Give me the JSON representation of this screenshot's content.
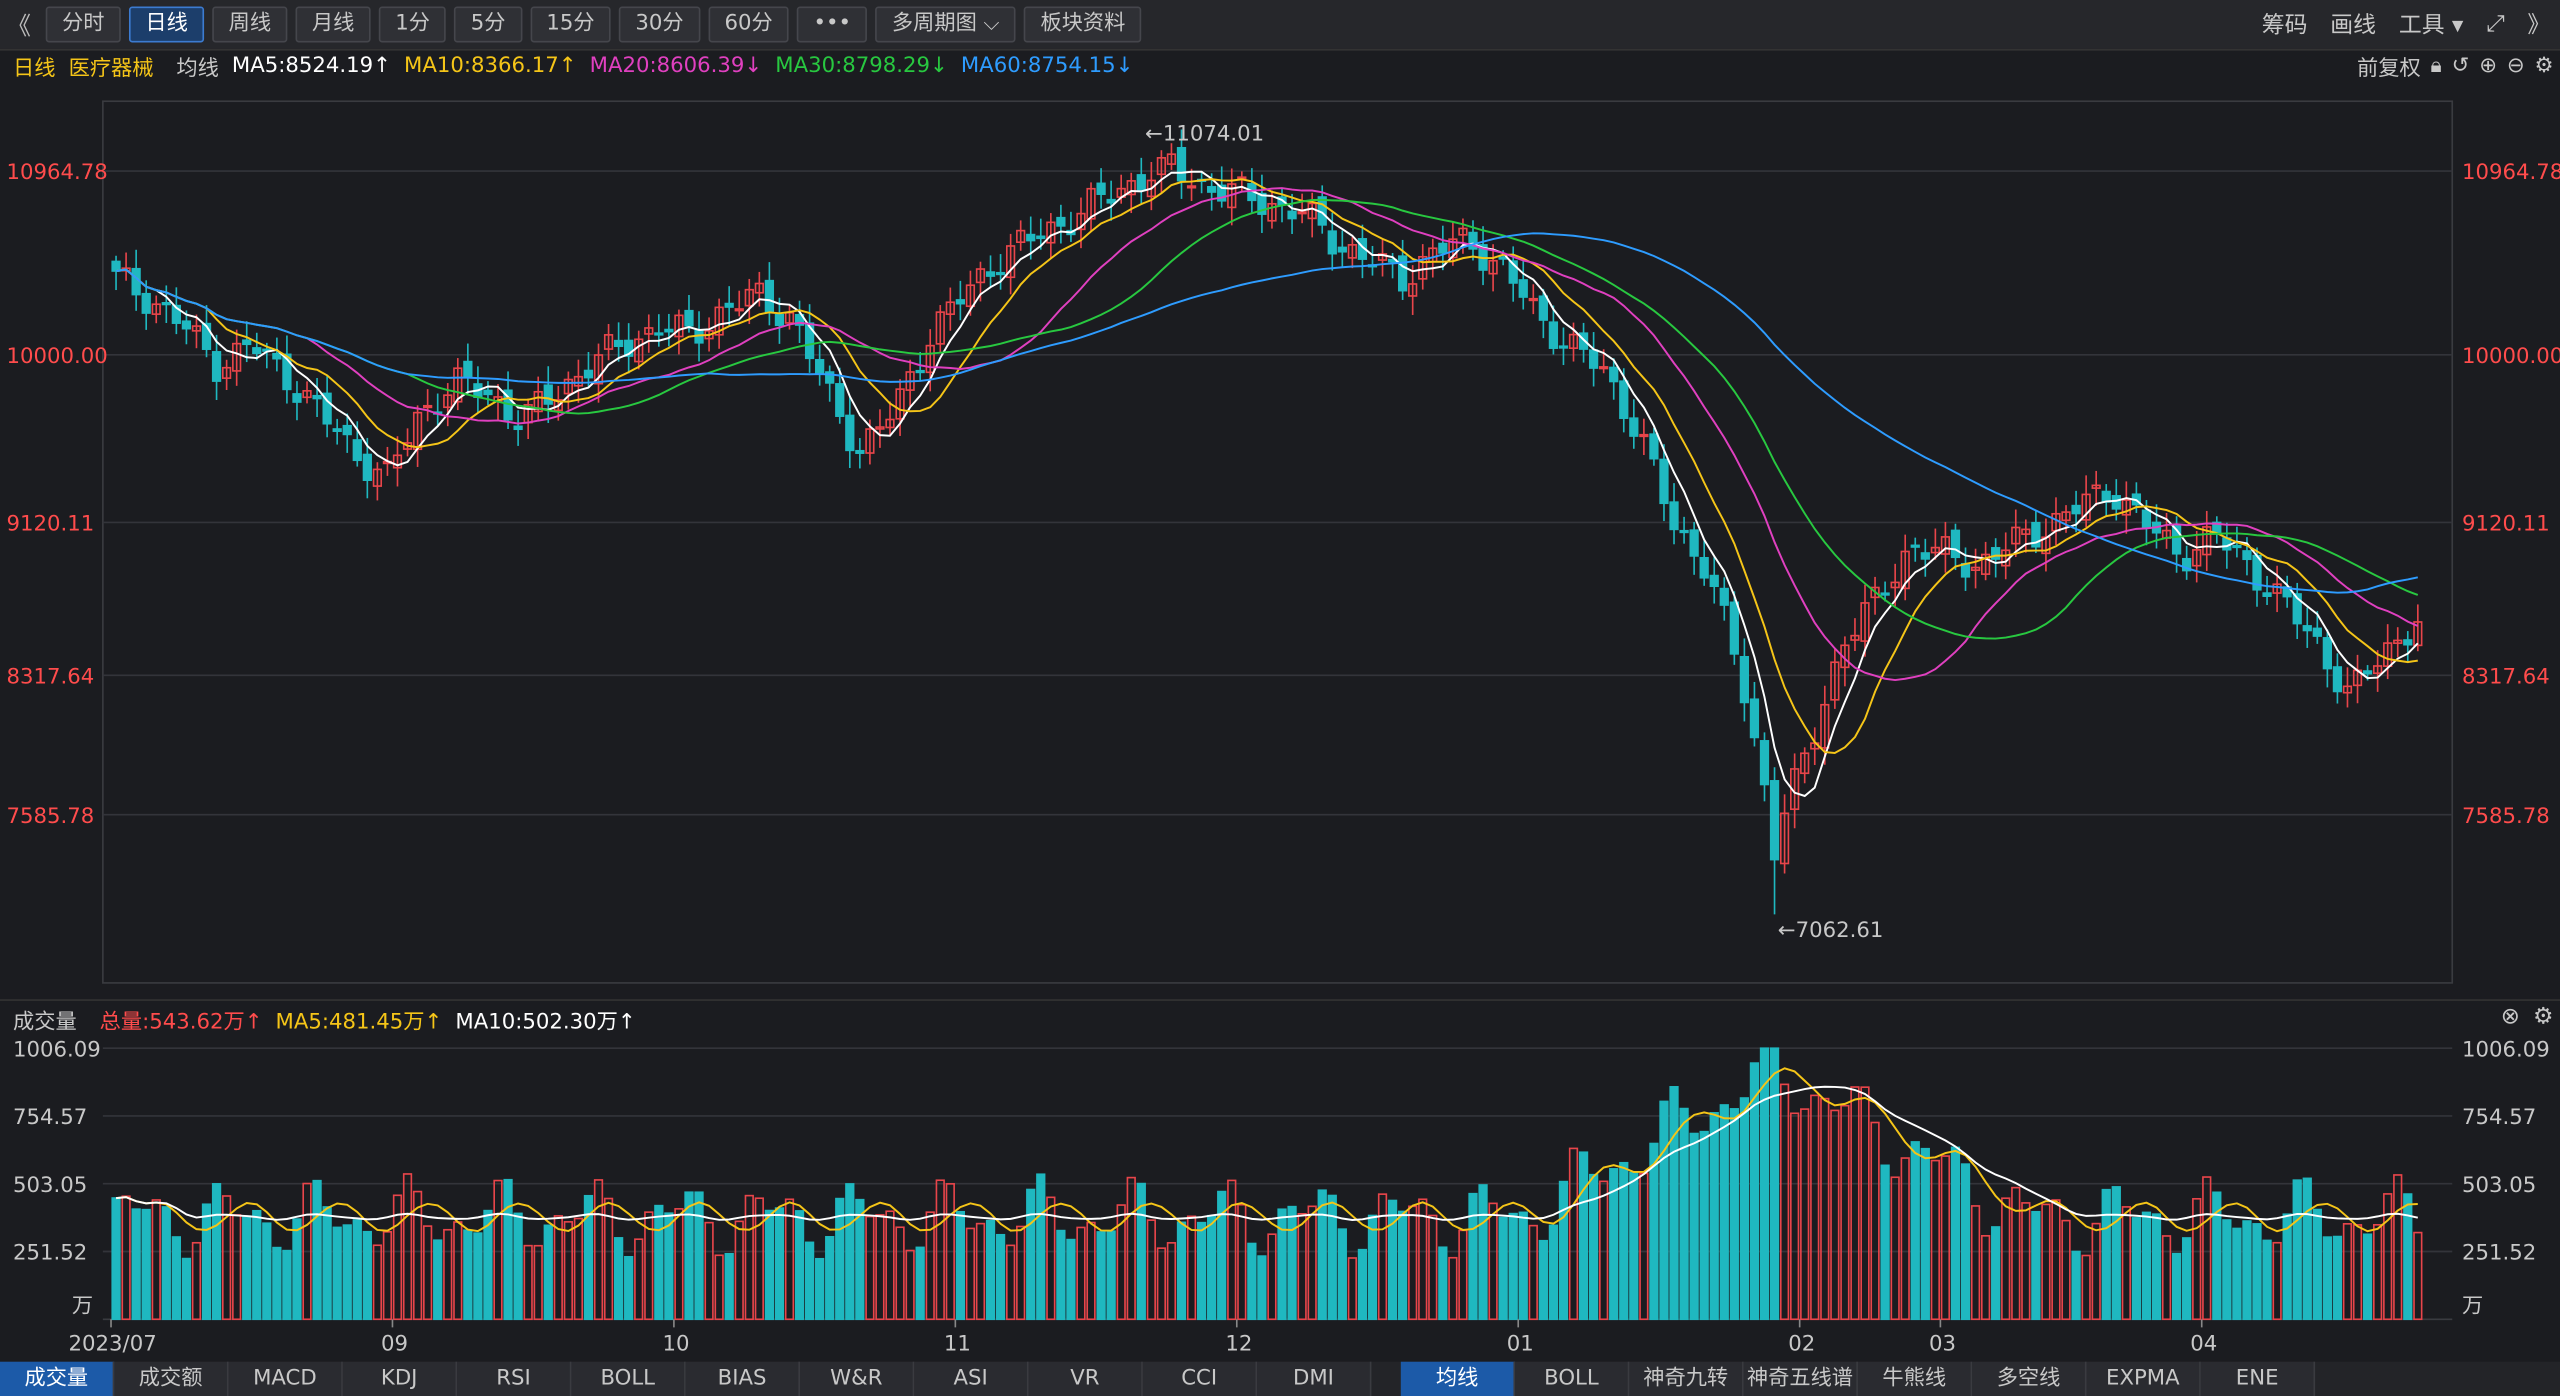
{
  "toolbar": {
    "collapse_left": "《",
    "tabs": [
      "分时",
      "日线",
      "周线",
      "月线",
      "1分",
      "5分",
      "15分",
      "30分",
      "60分",
      "•••",
      "多周期图 ⌵",
      "板块资料"
    ],
    "active_tab": 1,
    "right_items": [
      "筹码",
      "画线",
      "工具 ▾"
    ],
    "expand_icon": "⤢",
    "collapse_right": "》"
  },
  "ma_row": {
    "period": "日线",
    "sector": "医疗器械",
    "label": "均线",
    "ma5": "MA5:8524.19↑",
    "ma10": "MA10:8366.17↑",
    "ma20": "MA20:8606.39↓",
    "ma30": "MA30:8798.29↓",
    "ma60": "MA60:8754.15↓",
    "right_label": "前复权"
  },
  "colors": {
    "up": "#e8454a",
    "down": "#1fb8c0",
    "ma5": "#ffffff",
    "ma10": "#f5c518",
    "ma20": "#e040c0",
    "ma30": "#28c840",
    "ma60": "#2e9cff",
    "axis_red": "#ff4c4c"
  },
  "price_axis": {
    "ticks": [
      "10964.78",
      "10000.00",
      "9120.11",
      "8317.64",
      "7585.78"
    ],
    "max_label": "←11074.01",
    "min_label": "←7062.61"
  },
  "x_axis": {
    "labels": [
      "2023/07",
      "09",
      "10",
      "11",
      "12",
      "01",
      "02",
      "03",
      "04"
    ]
  },
  "volume_row": {
    "title": "成交量",
    "total": "总量:543.62万↑",
    "ma5": "MA5:481.45万↑",
    "ma10": "MA10:502.30万↑"
  },
  "volume_axis": {
    "ticks": [
      "1006.09",
      "754.57",
      "503.05",
      "251.52"
    ],
    "unit": "万"
  },
  "bottom_tabs_left": [
    "成交量",
    "成交额",
    "MACD",
    "KDJ",
    "RSI",
    "BOLL",
    "BIAS",
    "W&R",
    "ASI",
    "VR",
    "CCI",
    "DMI"
  ],
  "bottom_tabs_right": [
    "均线",
    "BOLL",
    "神奇九转",
    "神奇五线谱",
    "牛熊线",
    "多空线",
    "EXPMA",
    "ENE"
  ],
  "chart_data": {
    "type": "candlestick",
    "title": "医疗器械 日线",
    "period": "2023/07 – 2024/04",
    "price_range": [
      7062.61,
      11074.01
    ],
    "highest": 11074.01,
    "lowest": 7062.61,
    "moving_averages": {
      "MA5": 8524.19,
      "MA10": 8366.17,
      "MA20": 8606.39,
      "MA30": 8798.29,
      "MA60": 8754.15
    },
    "close_series_sampled": [
      10400,
      10300,
      10150,
      9950,
      10050,
      9900,
      9700,
      9500,
      9350,
      9700,
      9850,
      9800,
      9650,
      9800,
      9950,
      10050,
      10150,
      10100,
      10250,
      10300,
      10200,
      9800,
      9500,
      9700,
      10100,
      10300,
      10500,
      10600,
      10700,
      10800,
      10900,
      11000,
      10900,
      10850,
      10800,
      10750,
      10600,
      10500,
      10400,
      10550,
      10600,
      10450,
      10200,
      10050,
      9900,
      9600,
      9100,
      8900,
      8300,
      7500,
      7900,
      8500,
      8700,
      9000,
      8950,
      8900,
      9000,
      9100,
      9200,
      9300,
      9100,
      8950,
      9050,
      8900,
      8700,
      8500,
      8200,
      8450,
      8600
    ],
    "volume_unit": "万",
    "volume_total_latest": 543.62,
    "volume_ma5": 481.45,
    "volume_ma10": 502.3,
    "volume_range": [
      0,
      1006.09
    ]
  }
}
